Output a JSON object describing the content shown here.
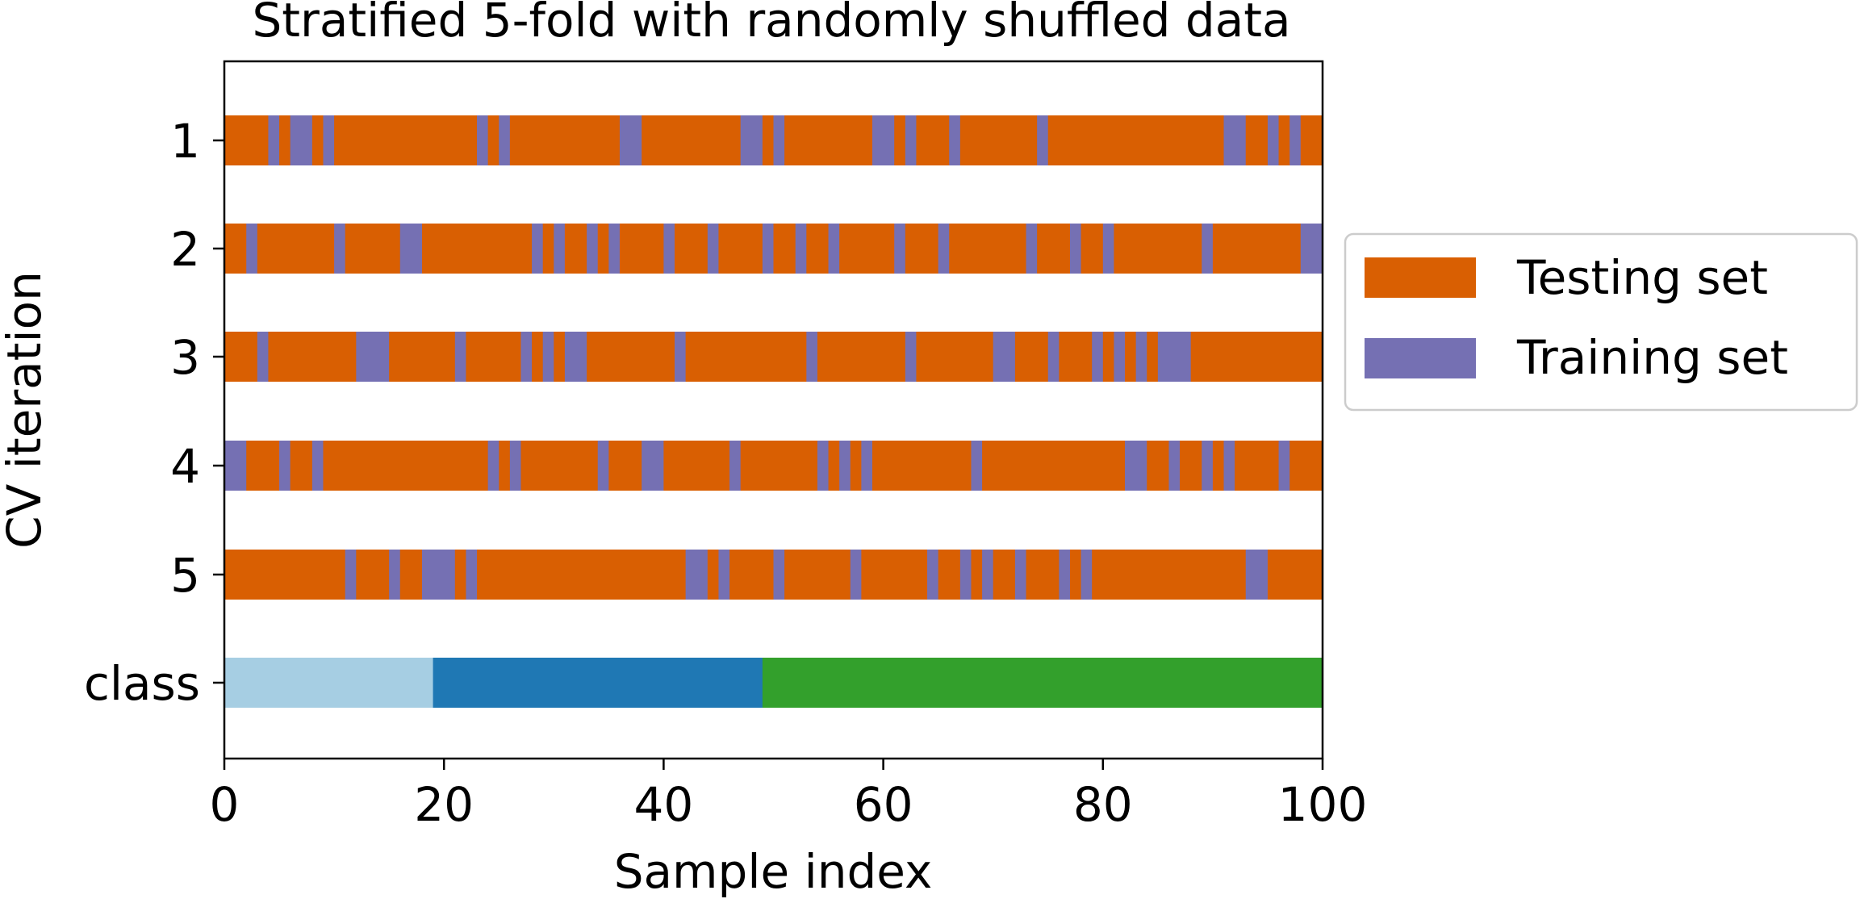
{
  "chart_data": {
    "type": "bar",
    "title": "Stratified 5-fold with randomly shuffled data",
    "xlabel": "Sample index",
    "ylabel": "CV iteration",
    "xlim": [
      0,
      100
    ],
    "xticks": [
      "0",
      "20",
      "40",
      "60",
      "80",
      "100"
    ],
    "row_labels": [
      "1",
      "2",
      "3",
      "4",
      "5",
      "class"
    ],
    "legend": {
      "position": "right-outside",
      "entries": [
        {
          "label": "Testing set",
          "color": "#D95F02"
        },
        {
          "label": "Training set",
          "color": "#7570B3"
        }
      ]
    },
    "colors": {
      "testing": "#D95F02",
      "training": "#7570B3"
    },
    "class_segments": [
      {
        "start": 0,
        "end": 19,
        "color": "#A6CEE3"
      },
      {
        "start": 19,
        "end": 49,
        "color": "#1F78B4"
      },
      {
        "start": 49,
        "end": 100,
        "color": "#33A02C"
      }
    ],
    "folds": [
      {
        "label": "1",
        "training_indices": [
          4,
          6,
          7,
          9,
          23,
          25,
          36,
          37,
          47,
          48,
          50,
          59,
          60,
          62,
          66,
          74,
          91,
          92,
          95,
          97
        ]
      },
      {
        "label": "2",
        "training_indices": [
          2,
          10,
          16,
          17,
          28,
          30,
          33,
          35,
          40,
          44,
          49,
          52,
          55,
          61,
          65,
          73,
          77,
          80,
          89,
          98,
          99
        ]
      },
      {
        "label": "3",
        "training_indices": [
          3,
          12,
          13,
          14,
          21,
          27,
          29,
          31,
          32,
          41,
          53,
          62,
          70,
          71,
          75,
          79,
          81,
          83,
          85,
          86,
          87
        ]
      },
      {
        "label": "4",
        "training_indices": [
          0,
          1,
          5,
          8,
          24,
          26,
          34,
          38,
          39,
          46,
          54,
          56,
          58,
          68,
          82,
          83,
          86,
          89,
          91,
          96
        ]
      },
      {
        "label": "5",
        "training_indices": [
          11,
          15,
          18,
          19,
          20,
          22,
          42,
          43,
          45,
          50,
          57,
          64,
          67,
          69,
          72,
          76,
          78,
          93,
          94
        ]
      }
    ]
  }
}
